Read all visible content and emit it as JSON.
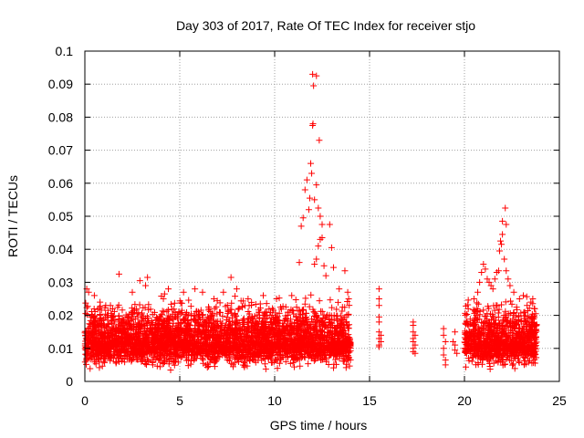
{
  "chart_data": {
    "type": "scatter",
    "title": "Day 303 of 2017, Rate Of TEC Index for receiver stjo",
    "xlabel": "GPS time / hours",
    "ylabel": "ROTI / TECUs",
    "xlim": [
      0,
      25
    ],
    "ylim": [
      0,
      0.1
    ],
    "xticks": [
      0,
      5,
      10,
      15,
      20,
      25
    ],
    "yticks": [
      0,
      0.01,
      0.02,
      0.03,
      0.04,
      0.05,
      0.06,
      0.07,
      0.08,
      0.09,
      0.1
    ],
    "xtick_labels": [
      "0",
      "5",
      "10",
      "15",
      "20",
      "25"
    ],
    "ytick_labels": [
      "0",
      "0.01",
      "0.02",
      "0.03",
      "0.04",
      "0.05",
      "0.06",
      "0.07",
      "0.08",
      "0.09",
      "0.1"
    ],
    "grid": true,
    "marker": "+",
    "color": "#ff0000",
    "series": [
      {
        "name": "ROTI",
        "points": [
          [
            0.1,
            0.028
          ],
          [
            0.2,
            0.027
          ],
          [
            0.5,
            0.026
          ],
          [
            0.8,
            0.024
          ],
          [
            1.1,
            0.023
          ],
          [
            1.8,
            0.0325
          ],
          [
            2.5,
            0.027
          ],
          [
            2.9,
            0.0305
          ],
          [
            3.2,
            0.029
          ],
          [
            3.3,
            0.0315
          ],
          [
            4.2,
            0.0265
          ],
          [
            4.4,
            0.028
          ],
          [
            5.2,
            0.027
          ],
          [
            5.8,
            0.028
          ],
          [
            6.2,
            0.027
          ],
          [
            6.8,
            0.025
          ],
          [
            7.3,
            0.027
          ],
          [
            7.7,
            0.0315
          ],
          [
            8.0,
            0.028
          ],
          [
            8.6,
            0.025
          ],
          [
            9.4,
            0.026
          ],
          [
            10.1,
            0.025
          ],
          [
            10.9,
            0.026
          ],
          [
            11.3,
            0.036
          ],
          [
            11.4,
            0.047
          ],
          [
            11.5,
            0.0495
          ],
          [
            11.6,
            0.058
          ],
          [
            11.7,
            0.061
          ],
          [
            11.8,
            0.052
          ],
          [
            11.85,
            0.0555
          ],
          [
            11.9,
            0.066
          ],
          [
            11.95,
            0.063
          ],
          [
            12.0,
            0.0775
          ],
          [
            12.02,
            0.078
          ],
          [
            12.05,
            0.0895
          ],
          [
            12.0,
            0.093
          ],
          [
            12.2,
            0.0925
          ],
          [
            12.35,
            0.073
          ],
          [
            12.2,
            0.0595
          ],
          [
            12.1,
            0.055
          ],
          [
            12.3,
            0.0525
          ],
          [
            12.4,
            0.05
          ],
          [
            12.5,
            0.0475
          ],
          [
            12.4,
            0.043
          ],
          [
            12.5,
            0.0435
          ],
          [
            12.3,
            0.041
          ],
          [
            12.2,
            0.037
          ],
          [
            12.6,
            0.035
          ],
          [
            12.7,
            0.032
          ],
          [
            12.1,
            0.0355
          ],
          [
            12.9,
            0.0475
          ],
          [
            13.0,
            0.0405
          ],
          [
            13.1,
            0.0345
          ],
          [
            13.4,
            0.028
          ],
          [
            13.7,
            0.0335
          ],
          [
            13.85,
            0.027
          ],
          [
            13.9,
            0.025
          ],
          [
            15.5,
            0.028
          ],
          [
            15.5,
            0.025
          ],
          [
            15.5,
            0.023
          ],
          [
            15.5,
            0.0195
          ],
          [
            15.5,
            0.018
          ],
          [
            15.5,
            0.015
          ],
          [
            15.6,
            0.014
          ],
          [
            15.5,
            0.013
          ],
          [
            15.6,
            0.012
          ],
          [
            15.5,
            0.011
          ],
          [
            15.5,
            0.0105
          ],
          [
            17.3,
            0.018
          ],
          [
            17.3,
            0.017
          ],
          [
            17.3,
            0.015
          ],
          [
            17.4,
            0.014
          ],
          [
            17.3,
            0.013
          ],
          [
            17.3,
            0.012
          ],
          [
            17.4,
            0.011
          ],
          [
            17.3,
            0.01
          ],
          [
            17.3,
            0.009
          ],
          [
            17.4,
            0.0085
          ],
          [
            18.9,
            0.016
          ],
          [
            18.9,
            0.014
          ],
          [
            19.0,
            0.012
          ],
          [
            18.9,
            0.01
          ],
          [
            18.9,
            0.008
          ],
          [
            19.0,
            0.0065
          ],
          [
            19.0,
            0.005
          ],
          [
            19.5,
            0.015
          ],
          [
            19.4,
            0.012
          ],
          [
            19.5,
            0.011
          ],
          [
            19.5,
            0.0095
          ],
          [
            19.6,
            0.0085
          ],
          [
            20.2,
            0.022
          ],
          [
            20.5,
            0.025
          ],
          [
            20.7,
            0.027
          ],
          [
            20.8,
            0.03
          ],
          [
            20.9,
            0.033
          ],
          [
            21.0,
            0.0355
          ],
          [
            21.1,
            0.034
          ],
          [
            21.2,
            0.031
          ],
          [
            21.3,
            0.03
          ],
          [
            21.4,
            0.029
          ],
          [
            21.5,
            0.028
          ],
          [
            21.6,
            0.031
          ],
          [
            21.7,
            0.033
          ],
          [
            21.8,
            0.0335
          ],
          [
            21.85,
            0.0395
          ],
          [
            21.9,
            0.0425
          ],
          [
            21.95,
            0.0415
          ],
          [
            22.0,
            0.0445
          ],
          [
            22.0,
            0.0485
          ],
          [
            22.2,
            0.0475
          ],
          [
            22.15,
            0.0525
          ],
          [
            22.1,
            0.037
          ],
          [
            22.2,
            0.0335
          ],
          [
            22.3,
            0.031
          ],
          [
            22.4,
            0.029
          ],
          [
            22.6,
            0.027
          ],
          [
            22.9,
            0.025
          ],
          [
            23.1,
            0.026
          ],
          [
            23.3,
            0.023
          ],
          [
            23.5,
            0.024
          ],
          [
            23.6,
            0.025
          ],
          [
            23.7,
            0.022
          ]
        ]
      }
    ],
    "dense_band": {
      "note": "continuous scatter of ROTI points, 0.003-0.027 TECU range",
      "x_segments": [
        [
          0,
          14.0
        ],
        [
          20.0,
          23.8
        ]
      ],
      "y_range": [
        0.003,
        0.027
      ],
      "y_median": 0.012
    }
  }
}
